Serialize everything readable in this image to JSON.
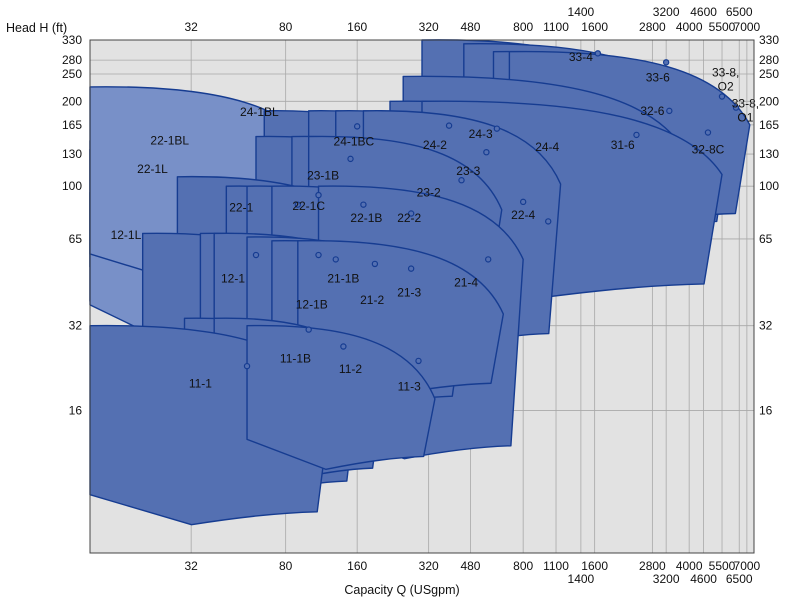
{
  "chart_data": {
    "type": "area",
    "title": "",
    "ylabel": "Head H (ft)",
    "xlabel": "Capacity Q (USgpm)",
    "xscale": "log",
    "yscale": "log",
    "xlim": [
      12,
      7500
    ],
    "ylim": [
      5,
      330
    ],
    "grid": true,
    "colors": {
      "plot_bg": "#e2e2e2",
      "grid": "#a8a8a8",
      "zone_fill": "#5470b2",
      "zone_light": "#7890c8",
      "zone_stroke": "#163c91"
    },
    "x_ticks_top_row1": [
      {
        "v": 1400,
        "t": "1400"
      },
      {
        "v": 3200,
        "t": "3200"
      },
      {
        "v": 4600,
        "t": "4600"
      },
      {
        "v": 6500,
        "t": "6500"
      }
    ],
    "x_ticks_top_row2": [
      {
        "v": 32,
        "t": "32"
      },
      {
        "v": 80,
        "t": "80"
      },
      {
        "v": 160,
        "t": "160"
      },
      {
        "v": 320,
        "t": "320"
      },
      {
        "v": 480,
        "t": "480"
      },
      {
        "v": 800,
        "t": "800"
      },
      {
        "v": 1100,
        "t": "1100"
      },
      {
        "v": 1600,
        "t": "1600"
      },
      {
        "v": 2800,
        "t": "2800"
      },
      {
        "v": 4000,
        "t": "4000"
      },
      {
        "v": 5500,
        "t": "5500"
      },
      {
        "v": 7000,
        "t": "7000"
      }
    ],
    "x_ticks_bottom_row1": [
      {
        "v": 32,
        "t": "32"
      },
      {
        "v": 80,
        "t": "80"
      },
      {
        "v": 160,
        "t": "160"
      },
      {
        "v": 320,
        "t": "320"
      },
      {
        "v": 480,
        "t": "480"
      },
      {
        "v": 800,
        "t": "800"
      },
      {
        "v": 1100,
        "t": "1100"
      },
      {
        "v": 1600,
        "t": "1600"
      },
      {
        "v": 2800,
        "t": "2800"
      },
      {
        "v": 4000,
        "t": "4000"
      },
      {
        "v": 5500,
        "t": "5500"
      },
      {
        "v": 7000,
        "t": "7000"
      }
    ],
    "x_ticks_bottom_row2": [
      {
        "v": 1400,
        "t": "1400"
      },
      {
        "v": 3200,
        "t": "3200"
      },
      {
        "v": 4600,
        "t": "4600"
      },
      {
        "v": 6500,
        "t": "6500"
      }
    ],
    "x_gridlines": [
      32,
      80,
      160,
      320,
      480,
      800,
      1100,
      1400,
      1600,
      2800,
      3200,
      4000,
      4600,
      5500,
      6500,
      7000
    ],
    "y_ticks_left": [
      {
        "v": 330,
        "t": "330"
      },
      {
        "v": 280,
        "t": "280"
      },
      {
        "v": 250,
        "t": "250"
      },
      {
        "v": 200,
        "t": "200"
      },
      {
        "v": 165,
        "t": "165"
      },
      {
        "v": 130,
        "t": "130"
      },
      {
        "v": 100,
        "t": "100"
      },
      {
        "v": 65,
        "t": "65"
      },
      {
        "v": 32,
        "t": "32"
      },
      {
        "v": 16,
        "t": "16"
      }
    ],
    "y_ticks_right": [
      {
        "v": 330,
        "t": "330"
      },
      {
        "v": 280,
        "t": "280"
      },
      {
        "v": 250,
        "t": "250"
      },
      {
        "v": 200,
        "t": "200"
      },
      {
        "v": 165,
        "t": "165"
      },
      {
        "v": 130,
        "t": "130"
      },
      {
        "v": 100,
        "t": "100"
      },
      {
        "v": 65,
        "t": "65"
      },
      {
        "v": 32,
        "t": "32"
      },
      {
        "v": 16,
        "t": "16"
      }
    ],
    "series": [
      {
        "name": "11-1",
        "head_max": 32,
        "q_min": 12,
        "q_max": 125,
        "head_min": 7,
        "q_bep": 55,
        "h_bep": 23,
        "label": [
          35,
          20
        ]
      },
      {
        "name": "11-1B",
        "head_max": 34,
        "q_min": 30,
        "q_max": 160,
        "head_min": 9,
        "q_bep": 100,
        "h_bep": 31,
        "label": [
          88,
          24.5
        ]
      },
      {
        "name": "11-2",
        "head_max": 34,
        "q_min": 40,
        "q_max": 205,
        "head_min": 10,
        "q_bep": 140,
        "h_bep": 27,
        "label": [
          150,
          22.5
        ]
      },
      {
        "name": "11-3",
        "head_max": 32,
        "q_min": 55,
        "q_max": 340,
        "head_min": 11,
        "q_bep": 290,
        "h_bep": 24,
        "label": [
          265,
          19.5
        ]
      },
      {
        "name": "12-1",
        "head_max": 68,
        "q_min": 20,
        "q_max": 150,
        "head_min": 14,
        "q_bep": 60,
        "h_bep": 57,
        "label": [
          48,
          47
        ]
      },
      {
        "name": "12-1B",
        "head_max": 68,
        "q_min": 35,
        "q_max": 205,
        "head_min": 17,
        "q_bep": 110,
        "h_bep": 57,
        "label": [
          103,
          38
        ]
      },
      {
        "name": "21-1B",
        "head_max": 68,
        "q_min": 40,
        "q_max": 255,
        "head_min": 17,
        "q_bep": 130,
        "h_bep": 55,
        "label": [
          140,
          47
        ]
      },
      {
        "name": "21-2",
        "head_max": 66,
        "q_min": 55,
        "q_max": 340,
        "head_min": 18,
        "q_bep": 190,
        "h_bep": 53,
        "label": [
          185,
          39.5
        ]
      },
      {
        "name": "21-3",
        "head_max": 64,
        "q_min": 70,
        "q_max": 450,
        "head_min": 18,
        "q_bep": 270,
        "h_bep": 51,
        "label": [
          265,
          42
        ]
      },
      {
        "name": "21-4",
        "head_max": 64,
        "q_min": 90,
        "q_max": 660,
        "head_min": 20,
        "q_bep": 570,
        "h_bep": 55,
        "label": [
          460,
          45.5
        ]
      },
      {
        "name": "22-1",
        "head_max": 108,
        "q_min": 28,
        "q_max": 210,
        "head_min": 24,
        "q_bep": 90,
        "h_bep": 86,
        "label": [
          52,
          84
        ]
      },
      {
        "name": "22-1C",
        "head_max": 100,
        "q_min": 45,
        "q_max": 260,
        "head_min": 26,
        "q_bep": 110,
        "h_bep": 93,
        "label": [
          100,
          85
        ]
      },
      {
        "name": "22-1B",
        "head_max": 100,
        "q_min": 55,
        "q_max": 345,
        "head_min": 27,
        "q_bep": 170,
        "h_bep": 86,
        "label": [
          175,
          77
        ]
      },
      {
        "name": "22-2",
        "head_max": 100,
        "q_min": 70,
        "q_max": 450,
        "head_min": 28,
        "q_bep": 270,
        "h_bep": 80,
        "label": [
          265,
          77
        ]
      },
      {
        "name": "22-1BL",
        "head_max": 135,
        "q_min": 12,
        "q_max": 100,
        "head_min": 34,
        "light": true,
        "label": [
          26,
          145
        ]
      },
      {
        "name": "22-1L",
        "head_max": 145,
        "q_min": 12,
        "q_max": 70,
        "head_min": 45,
        "light": true,
        "label": [
          22,
          115
        ]
      },
      {
        "name": "12-1L",
        "head_max": 95,
        "q_min": 12,
        "q_max": 50,
        "head_min": 33,
        "light": true,
        "label": [
          17,
          67
        ]
      },
      {
        "name": "24-1BL",
        "head_max": 225,
        "q_min": 12,
        "q_max": 115,
        "head_min": 50,
        "light": true,
        "label": [
          62,
          183
        ]
      },
      {
        "name": "23-1B",
        "head_max": 150,
        "q_min": 60,
        "q_max": 360,
        "head_min": 38,
        "q_bep": 150,
        "h_bep": 125,
        "label": [
          115,
          109
        ]
      },
      {
        "name": "23-2",
        "head_max": 150,
        "q_min": 85,
        "q_max": 500,
        "head_min": 40,
        "q_bep": 440,
        "h_bep": 105,
        "label": [
          320,
          95
        ]
      },
      {
        "name": "23-3",
        "head_max": 150,
        "q_min": 100,
        "q_max": 650,
        "head_min": 45,
        "q_bep": 560,
        "h_bep": 132,
        "label": [
          470,
          113
        ]
      },
      {
        "name": "24-1BC",
        "head_max": 185,
        "q_min": 65,
        "q_max": 400,
        "head_min": 55,
        "q_bep": 160,
        "h_bep": 163,
        "label": [
          155,
          144
        ]
      },
      {
        "name": "24-2",
        "head_max": 185,
        "q_min": 100,
        "q_max": 560,
        "head_min": 60,
        "q_bep": 390,
        "h_bep": 164,
        "label": [
          340,
          140
        ]
      },
      {
        "name": "24-3",
        "head_max": 185,
        "q_min": 130,
        "q_max": 800,
        "head_min": 60,
        "q_bep": 620,
        "h_bep": 160,
        "label": [
          530,
          153
        ]
      },
      {
        "name": "24-4",
        "head_max": 185,
        "q_min": 170,
        "q_max": 1150,
        "head_min": 30,
        "q_bep": 1020,
        "h_bep": 75,
        "label": [
          1010,
          138
        ]
      },
      {
        "name": "22-4",
        "head_max": 100,
        "q_min": 110,
        "q_max": 800,
        "head_min": 12,
        "q_bep": 800,
        "h_bep": 88,
        "label": [
          800,
          79
        ]
      },
      {
        "name": "31-6",
        "head_max": 200,
        "q_min": 220,
        "q_max": 2800,
        "head_min": 45,
        "q_bep": 2400,
        "h_bep": 152,
        "label": [
          2100,
          140
        ]
      },
      {
        "name": "32-6",
        "head_max": 245,
        "q_min": 250,
        "q_max": 3800,
        "head_min": 50,
        "q_bep": 3300,
        "h_bep": 185,
        "label": [
          2800,
          185
        ]
      },
      {
        "name": "32-8C",
        "head_max": 200,
        "q_min": 300,
        "q_max": 5500,
        "head_min": 45,
        "q_bep": 4800,
        "h_bep": 155,
        "label": [
          4800,
          135
        ]
      },
      {
        "name": "33-4",
        "head_max": 330,
        "q_min": 300,
        "q_max": 3000,
        "head_min": 80,
        "q_bep": 1650,
        "h_bep": 296,
        "label": [
          1400,
          287
        ]
      },
      {
        "name": "33-6",
        "head_max": 320,
        "q_min": 450,
        "q_max": 4500,
        "head_min": 75,
        "q_bep": 3200,
        "h_bep": 275,
        "label": [
          2950,
          243
        ]
      },
      {
        "name": "33-8, O2",
        "head_max": 300,
        "q_min": 600,
        "q_max": 6000,
        "head_min": 75,
        "q_bep": 5500,
        "h_bep": 208,
        "label_lines": [
          "33-8,",
          "O2"
        ],
        "label": [
          5700,
          245
        ]
      },
      {
        "name": "33-8, O1",
        "head_max": 300,
        "q_min": 700,
        "q_max": 7200,
        "head_min": 80,
        "q_bep": 6300,
        "h_bep": 190,
        "label_lines": [
          "33-8,",
          "O1"
        ],
        "label": [
          6900,
          190
        ]
      }
    ]
  }
}
